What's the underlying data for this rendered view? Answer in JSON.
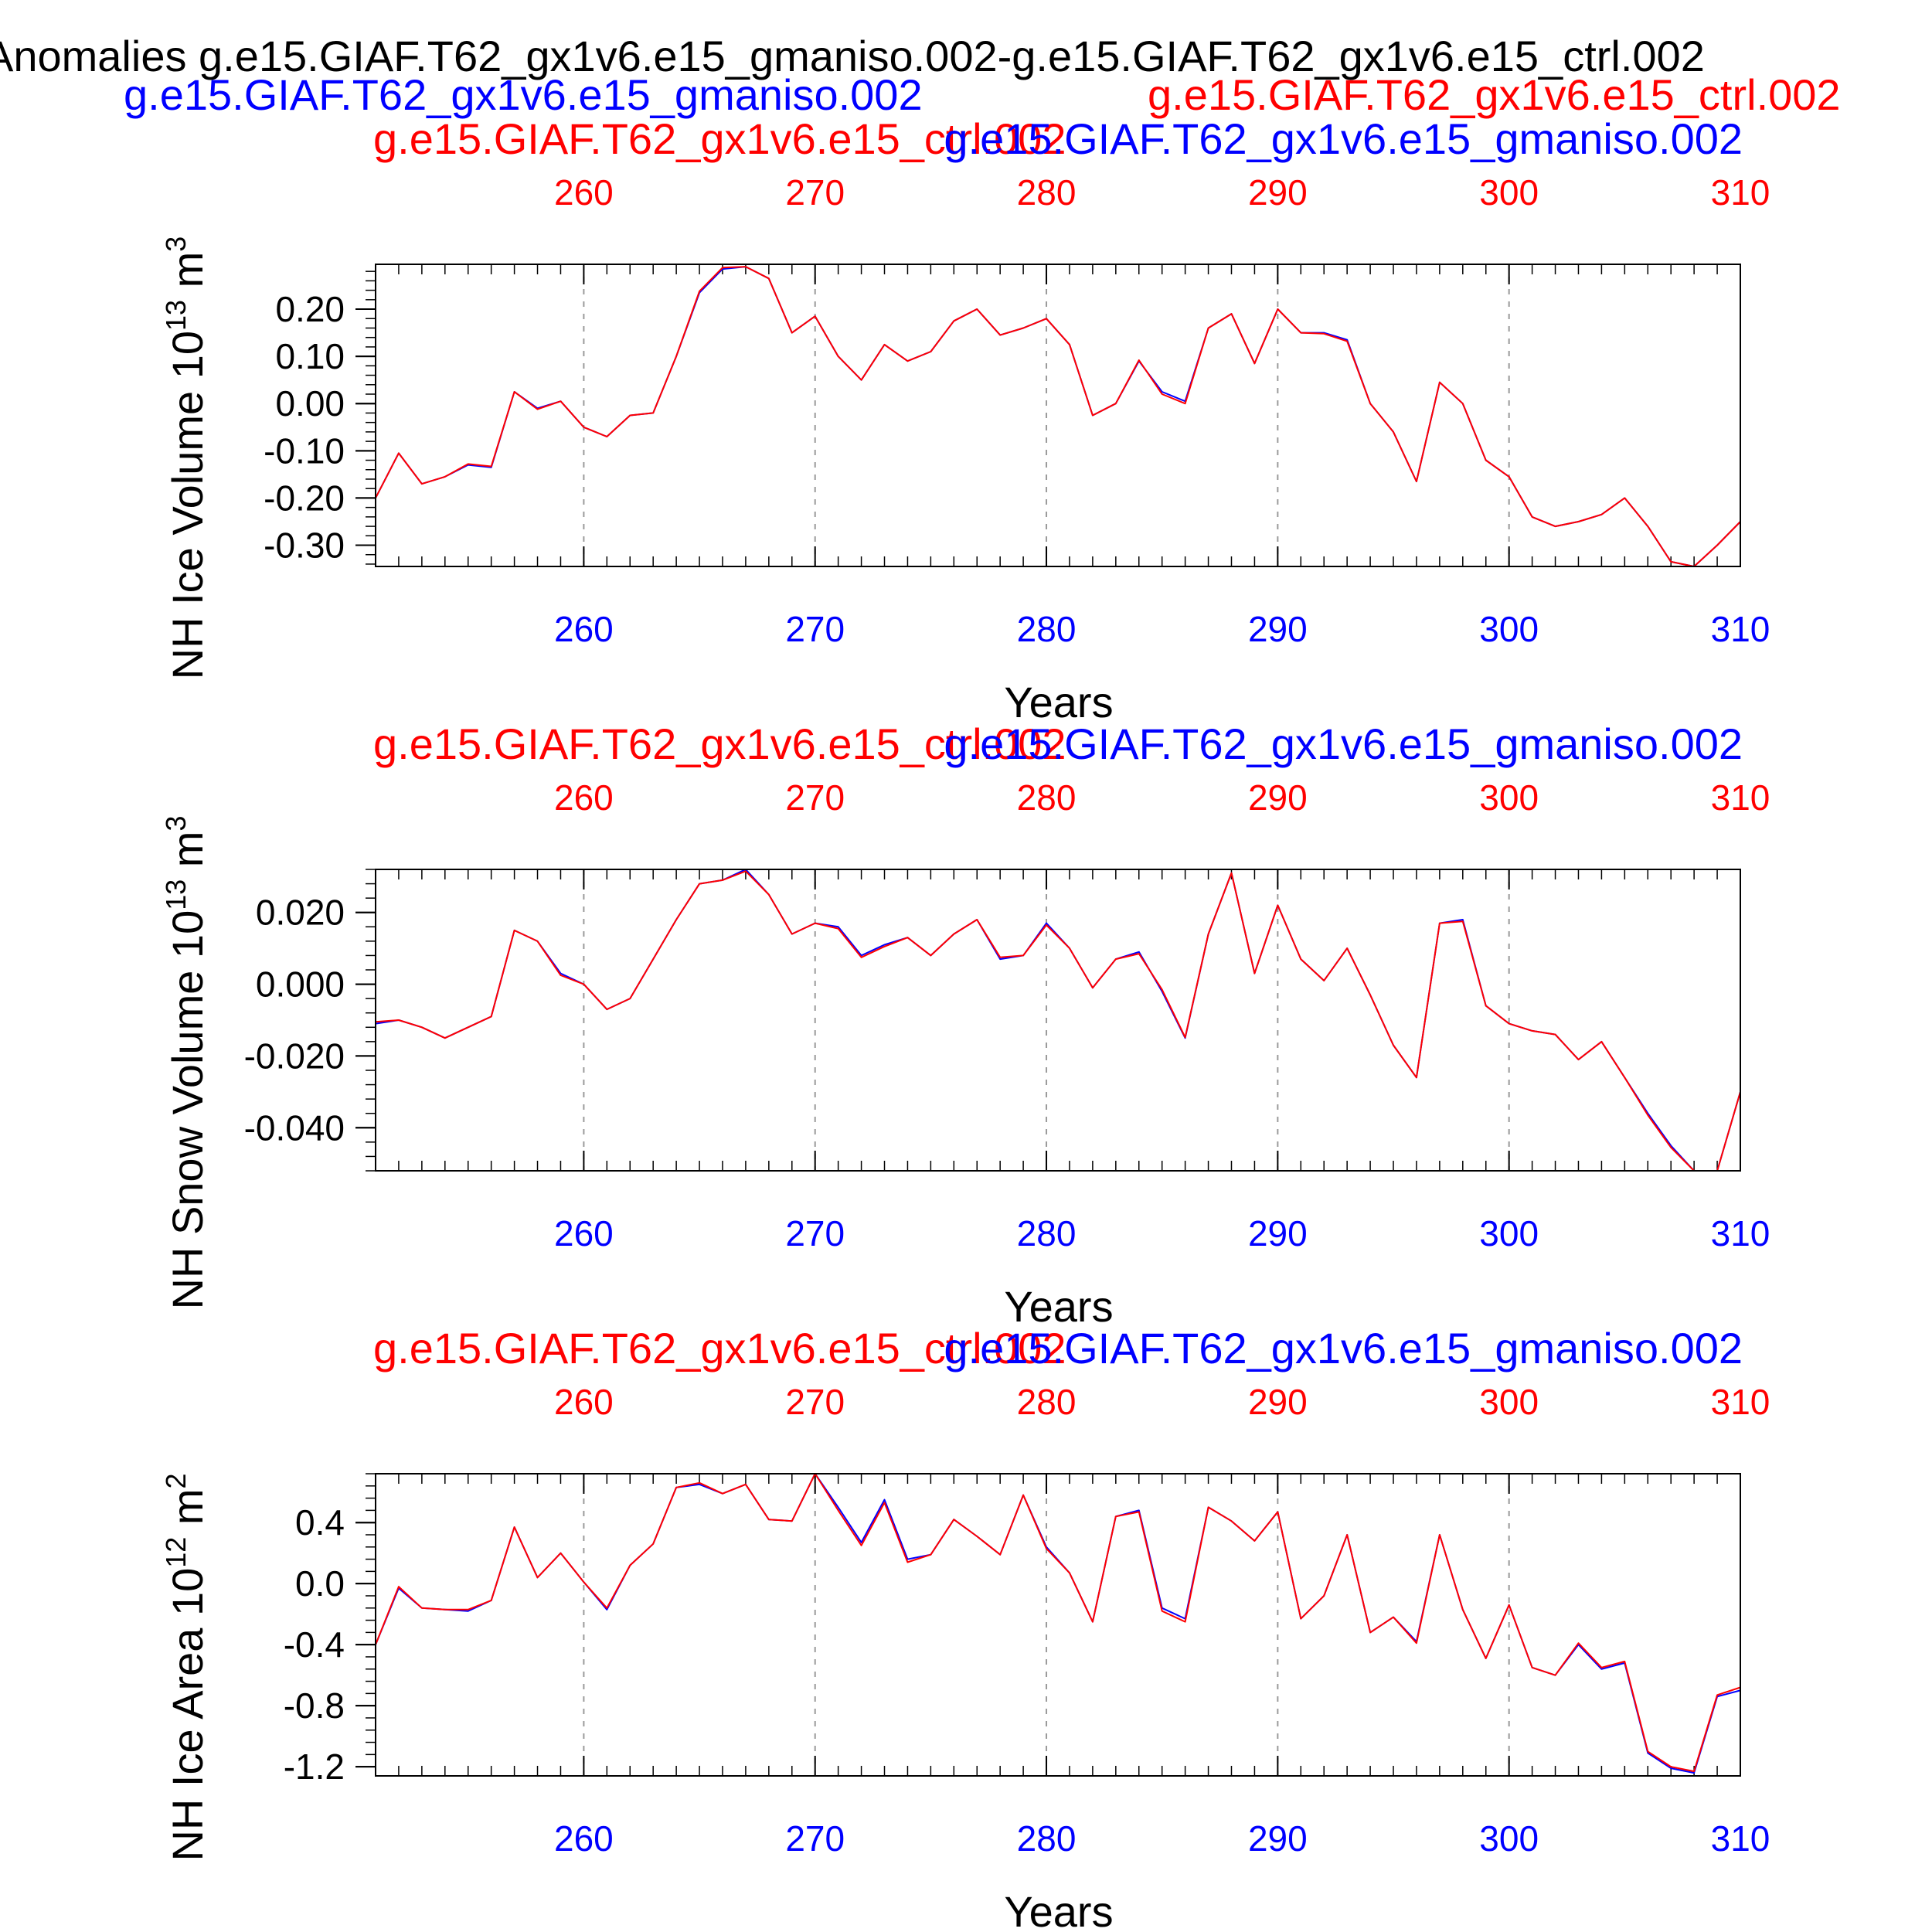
{
  "figure": {
    "main_title": "Anomalies g.e15.GIAF.T62_gx1v6.e15_gmaniso.002-g.e15.GIAF.T62_gx1v6.e15_ctrl.002",
    "case_a": "g.e15.GIAF.T62_gx1v6.e15_gmaniso.002",
    "case_b": "g.e15.GIAF.T62_gx1v6.e15_ctrl.002",
    "colors": {
      "case_a": "#0000ff",
      "case_b": "#ff0000",
      "text": "#000000",
      "grid": "#9a9a9a"
    }
  },
  "chart_data": [
    {
      "type": "line",
      "header_left": "g.e15.GIAF.T62_gx1v6.e15_ctrl.002",
      "header_right": "g.e15.GIAF.T62_gx1v6.e15_gmaniso.002",
      "ylabel": "NH Ice Volume",
      "ylabel_scale": "10",
      "ylabel_exp": "13",
      "ylabel_unit": "m",
      "ylabel_unit_exp": "3",
      "xlabel": "Years",
      "xlim": [
        251,
        310
      ],
      "ylim": [
        -0.345,
        0.295
      ],
      "yticks": [
        -0.3,
        -0.2,
        -0.1,
        0.0,
        0.1,
        0.2
      ],
      "ytick_labels": [
        "-0.30",
        "-0.20",
        "-0.10",
        "0.00",
        "0.10",
        "0.20"
      ],
      "yminor_step": 0.02,
      "xticks": [
        260,
        270,
        280,
        290,
        300,
        310
      ],
      "xtick_labels": [
        "260",
        "270",
        "280",
        "290",
        "300",
        "310"
      ],
      "x": [
        251,
        252,
        253,
        254,
        255,
        256,
        257,
        258,
        259,
        260,
        261,
        262,
        263,
        264,
        265,
        266,
        267,
        268,
        269,
        270,
        271,
        272,
        273,
        274,
        275,
        276,
        277,
        278,
        279,
        280,
        281,
        282,
        283,
        284,
        285,
        286,
        287,
        288,
        289,
        290,
        291,
        292,
        293,
        294,
        295,
        296,
        297,
        298,
        299,
        300,
        301,
        302,
        303,
        304,
        305,
        306,
        307,
        308,
        309,
        310
      ],
      "series": [
        {
          "values": [
            -0.2,
            -0.105,
            -0.17,
            -0.155,
            -0.13,
            -0.135,
            0.025,
            -0.01,
            0.005,
            -0.05,
            -0.07,
            -0.025,
            -0.02,
            0.1,
            0.235,
            0.285,
            0.29,
            0.265,
            0.15,
            0.185,
            0.1,
            0.05,
            0.125,
            0.09,
            0.11,
            0.175,
            0.2,
            0.145,
            0.16,
            0.18,
            0.125,
            -0.025,
            0.0,
            0.09,
            0.025,
            0.005,
            0.16,
            0.19,
            0.085,
            0.2,
            0.15,
            0.15,
            0.135,
            0.0,
            -0.06,
            -0.165,
            0.045,
            0.0,
            -0.12,
            -0.155,
            -0.24,
            -0.26,
            -0.25,
            -0.235,
            -0.2,
            -0.26,
            -0.335,
            -0.345,
            -0.3,
            -0.25
          ]
        },
        {
          "values": [
            -0.2,
            -0.105,
            -0.17,
            -0.155,
            -0.128,
            -0.133,
            0.025,
            -0.012,
            0.005,
            -0.05,
            -0.07,
            -0.025,
            -0.02,
            0.1,
            0.238,
            0.288,
            0.29,
            0.265,
            0.15,
            0.185,
            0.1,
            0.05,
            0.125,
            0.09,
            0.11,
            0.175,
            0.2,
            0.145,
            0.16,
            0.18,
            0.125,
            -0.025,
            0.0,
            0.092,
            0.02,
            0.0,
            0.16,
            0.19,
            0.085,
            0.2,
            0.15,
            0.148,
            0.132,
            0.0,
            -0.06,
            -0.165,
            0.045,
            0.0,
            -0.12,
            -0.155,
            -0.24,
            -0.26,
            -0.25,
            -0.235,
            -0.2,
            -0.26,
            -0.335,
            -0.345,
            -0.3,
            -0.25
          ]
        }
      ]
    },
    {
      "type": "line",
      "header_left": "g.e15.GIAF.T62_gx1v6.e15_ctrl.002",
      "header_right": "g.e15.GIAF.T62_gx1v6.e15_gmaniso.002",
      "ylabel": "NH Snow Volume",
      "ylabel_scale": "10",
      "ylabel_exp": "13",
      "ylabel_unit": "m",
      "ylabel_unit_exp": "3",
      "xlabel": "Years",
      "xlim": [
        251,
        310
      ],
      "ylim": [
        -0.052,
        0.032
      ],
      "yticks": [
        -0.04,
        -0.02,
        0.0,
        0.02
      ],
      "ytick_labels": [
        "-0.040",
        "-0.020",
        "0.000",
        "0.020"
      ],
      "yminor_step": 0.004,
      "xticks": [
        260,
        270,
        280,
        290,
        300,
        310
      ],
      "xtick_labels": [
        "260",
        "270",
        "280",
        "290",
        "300",
        "310"
      ],
      "x": [
        251,
        252,
        253,
        254,
        255,
        256,
        257,
        258,
        259,
        260,
        261,
        262,
        263,
        264,
        265,
        266,
        267,
        268,
        269,
        270,
        271,
        272,
        273,
        274,
        275,
        276,
        277,
        278,
        279,
        280,
        281,
        282,
        283,
        284,
        285,
        286,
        287,
        288,
        289,
        290,
        291,
        292,
        293,
        294,
        295,
        296,
        297,
        298,
        299,
        300,
        301,
        302,
        303,
        304,
        305,
        306,
        307,
        308,
        309,
        310
      ],
      "series": [
        {
          "values": [
            -0.011,
            -0.01,
            -0.012,
            -0.015,
            -0.012,
            -0.009,
            0.015,
            0.012,
            0.003,
            0.0,
            -0.007,
            -0.004,
            0.007,
            0.018,
            0.028,
            0.029,
            0.032,
            0.025,
            0.014,
            0.017,
            0.016,
            0.008,
            0.011,
            0.013,
            0.008,
            0.014,
            0.018,
            0.007,
            0.008,
            0.017,
            0.01,
            -0.001,
            0.007,
            0.009,
            -0.002,
            -0.015,
            0.014,
            0.031,
            0.003,
            0.022,
            0.007,
            0.001,
            0.01,
            -0.003,
            -0.017,
            -0.026,
            0.017,
            0.018,
            -0.006,
            -0.011,
            -0.013,
            -0.014,
            -0.021,
            -0.016,
            -0.026,
            -0.036,
            -0.045,
            -0.052,
            -0.052,
            -0.03
          ]
        },
        {
          "values": [
            -0.0105,
            -0.01,
            -0.012,
            -0.015,
            -0.012,
            -0.009,
            0.015,
            0.012,
            0.0025,
            0.0,
            -0.007,
            -0.004,
            0.007,
            0.018,
            0.028,
            0.029,
            0.0315,
            0.025,
            0.014,
            0.017,
            0.0155,
            0.0075,
            0.0105,
            0.013,
            0.008,
            0.014,
            0.018,
            0.0075,
            0.008,
            0.0165,
            0.01,
            -0.001,
            0.007,
            0.0085,
            -0.0015,
            -0.0148,
            0.014,
            0.031,
            0.003,
            0.022,
            0.007,
            0.001,
            0.01,
            -0.003,
            -0.017,
            -0.026,
            0.017,
            0.0175,
            -0.006,
            -0.011,
            -0.013,
            -0.014,
            -0.021,
            -0.016,
            -0.026,
            -0.0365,
            -0.0455,
            -0.052,
            -0.052,
            -0.03
          ]
        }
      ]
    },
    {
      "type": "line",
      "header_left": "g.e15.GIAF.T62_gx1v6.e15_ctrl.002",
      "header_right": "g.e15.GIAF.T62_gx1v6.e15_gmaniso.002",
      "ylabel": "NH Ice Area",
      "ylabel_scale": "10",
      "ylabel_exp": "12",
      "ylabel_unit": "m",
      "ylabel_unit_exp": "2",
      "xlabel": "Years",
      "xlim": [
        251,
        310
      ],
      "ylim": [
        -1.26,
        0.72
      ],
      "yticks": [
        -1.2,
        -0.8,
        -0.4,
        0.0,
        0.4
      ],
      "ytick_labels": [
        "-1.2",
        "-0.8",
        "-0.4",
        "0.0",
        "0.4"
      ],
      "yminor_step": 0.08,
      "xticks": [
        260,
        270,
        280,
        290,
        300,
        310
      ],
      "xtick_labels": [
        "260",
        "270",
        "280",
        "290",
        "300",
        "310"
      ],
      "x": [
        251,
        252,
        253,
        254,
        255,
        256,
        257,
        258,
        259,
        260,
        261,
        262,
        263,
        264,
        265,
        266,
        267,
        268,
        269,
        270,
        271,
        272,
        273,
        274,
        275,
        276,
        277,
        278,
        279,
        280,
        281,
        282,
        283,
        284,
        285,
        286,
        287,
        288,
        289,
        290,
        291,
        292,
        293,
        294,
        295,
        296,
        297,
        298,
        299,
        300,
        301,
        302,
        303,
        304,
        305,
        306,
        307,
        308,
        309,
        310
      ],
      "series": [
        {
          "values": [
            -0.4,
            -0.03,
            -0.16,
            -0.17,
            -0.18,
            -0.11,
            0.37,
            0.04,
            0.2,
            0.01,
            -0.17,
            0.12,
            0.26,
            0.63,
            0.65,
            0.59,
            0.65,
            0.42,
            0.41,
            0.72,
            0.5,
            0.27,
            0.55,
            0.16,
            0.19,
            0.42,
            0.31,
            0.19,
            0.58,
            0.24,
            0.07,
            -0.25,
            0.44,
            0.48,
            -0.16,
            -0.23,
            0.5,
            0.41,
            0.28,
            0.47,
            -0.23,
            -0.08,
            0.32,
            -0.32,
            -0.22,
            -0.38,
            0.32,
            -0.17,
            -0.49,
            -0.14,
            -0.55,
            -0.6,
            -0.4,
            -0.56,
            -0.52,
            -1.11,
            -1.21,
            -1.24,
            -0.74,
            -0.7
          ]
        },
        {
          "values": [
            -0.4,
            -0.02,
            -0.16,
            -0.17,
            -0.17,
            -0.11,
            0.37,
            0.04,
            0.2,
            0.01,
            -0.16,
            0.12,
            0.26,
            0.63,
            0.66,
            0.59,
            0.65,
            0.42,
            0.41,
            0.72,
            0.48,
            0.25,
            0.53,
            0.14,
            0.19,
            0.42,
            0.31,
            0.19,
            0.58,
            0.23,
            0.07,
            -0.25,
            0.44,
            0.47,
            -0.18,
            -0.25,
            0.5,
            0.41,
            0.28,
            0.47,
            -0.23,
            -0.08,
            0.32,
            -0.32,
            -0.22,
            -0.39,
            0.32,
            -0.17,
            -0.49,
            -0.14,
            -0.55,
            -0.6,
            -0.39,
            -0.55,
            -0.51,
            -1.1,
            -1.2,
            -1.23,
            -0.73,
            -0.68
          ]
        }
      ]
    }
  ]
}
